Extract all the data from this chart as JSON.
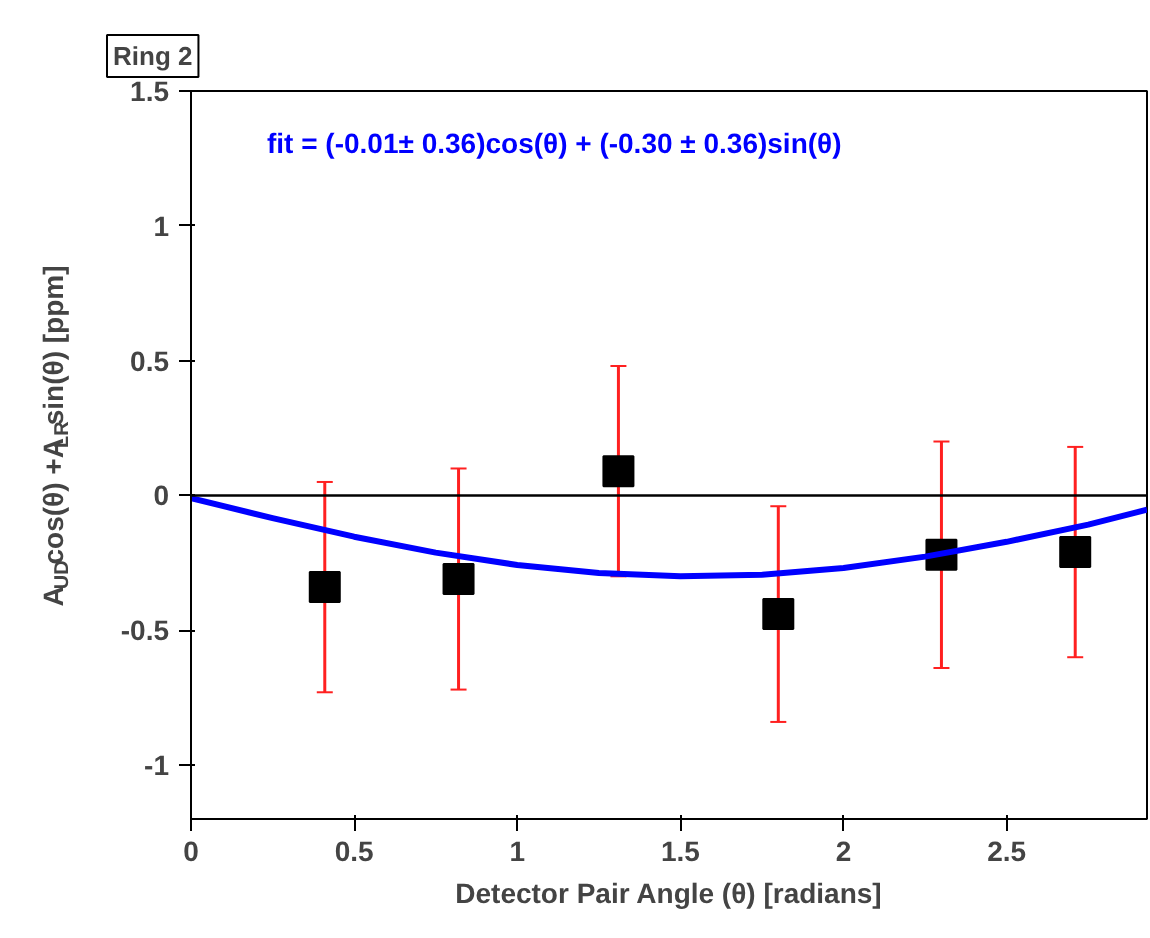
{
  "chart_data": {
    "type": "scatter",
    "title": "Ring 2",
    "xlabel": "Detector Pair Angle (θ) [radians]",
    "ylabel": "A$_{UD}$cos(θ) +A$_{LR}$sin(θ) [ppm]",
    "annotations": [
      "fit = (-0.01± 0.36)cos(θ) + (-0.30 ± 0.36)sin(θ)"
    ],
    "series": [
      {
        "color": "#000000",
        "marker": "square",
        "x": [
          0.41,
          0.82,
          1.31,
          1.8,
          2.3,
          2.71
        ],
        "values": [
          -0.34,
          -0.31,
          0.09,
          -0.44,
          -0.22,
          -0.21
        ],
        "errors": [
          0.39,
          0.41,
          0.39,
          0.4,
          0.42,
          0.39
        ]
      },
      {
        "type": "line",
        "color": "#0000ff",
        "marker": "none",
        "x": [
          0,
          0.25,
          0.5,
          0.75,
          1.0,
          1.25,
          1.5,
          1.75,
          2.0,
          2.25,
          2.5,
          2.75,
          2.93
        ],
        "values": [
          -0.01,
          -0.084,
          -0.153,
          -0.212,
          -0.258,
          -0.288,
          -0.3,
          -0.294,
          -0.269,
          -0.227,
          -0.172,
          -0.108,
          -0.053
        ]
      }
    ],
    "ref_lines": [
      {
        "axis": "y",
        "value": 0,
        "color": "#000000"
      }
    ],
    "xlim": [
      0,
      2.93
    ],
    "ylim": [
      -1.2,
      1.5
    ],
    "xticks": [
      0,
      0.5,
      1,
      1.5,
      2,
      2.5
    ],
    "yticks": [
      -1,
      -0.5,
      0,
      0.5,
      1,
      1.5
    ],
    "grid": false
  }
}
